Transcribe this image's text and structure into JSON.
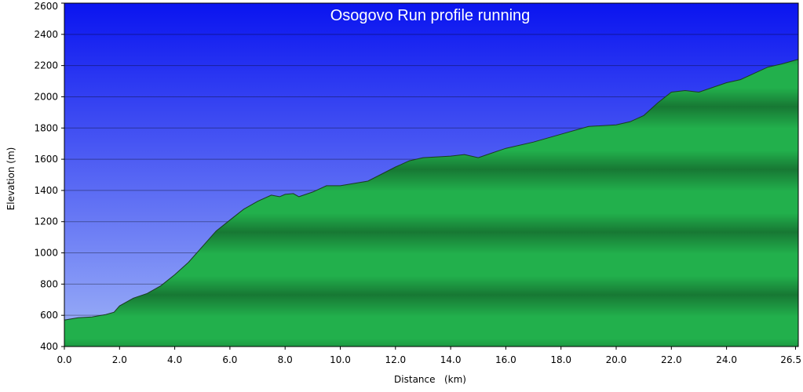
{
  "chart_data": {
    "type": "area",
    "title": "Osogovo Run profile running",
    "xlabel": "Distance   (km)",
    "ylabel": "Elevation (m)",
    "xlim": [
      0,
      26.6
    ],
    "ylim": [
      400,
      2600
    ],
    "x_ticks": [
      "0.0",
      "2.0",
      "4.0",
      "6.0",
      "8.0",
      "10.0",
      "12.0",
      "14.0",
      "16.0",
      "18.0",
      "20.0",
      "22.0",
      "24.0",
      "26.5"
    ],
    "x_tick_values": [
      0,
      2,
      4,
      6,
      8,
      10,
      12,
      14,
      16,
      18,
      20,
      22,
      24,
      26.5
    ],
    "y_ticks": [
      "400",
      "600",
      "800",
      "1000",
      "1200",
      "1400",
      "1600",
      "1800",
      "2000",
      "2200",
      "2400",
      "2600"
    ],
    "y_tick_values": [
      400,
      600,
      800,
      1000,
      1200,
      1400,
      1600,
      1800,
      2000,
      2200,
      2400,
      2600
    ],
    "grid": true,
    "colors": {
      "sky_top": "#0a14f0",
      "sky_bottom": "#9fb4f7",
      "fill_light": "#22b04c",
      "fill_dark": "#157a30",
      "grid": "#000000"
    },
    "series": [
      {
        "x": [
          0,
          0.5,
          1.0,
          1.5,
          1.8,
          2.0,
          2.5,
          3.0,
          3.5,
          4.0,
          4.5,
          5.0,
          5.5,
          6.0,
          6.5,
          7.0,
          7.5,
          7.8,
          8.0,
          8.3,
          8.5,
          9.0,
          9.5,
          10.0,
          11.0,
          12.0,
          12.5,
          13.0,
          14.0,
          14.5,
          15.0,
          15.5,
          16.0,
          17.0,
          18.0,
          19.0,
          20.0,
          20.5,
          21.0,
          21.5,
          22.0,
          22.5,
          23.0,
          23.5,
          24.0,
          24.5,
          25.0,
          25.5,
          26.0,
          26.6
        ],
        "values": [
          570,
          585,
          590,
          605,
          620,
          660,
          710,
          740,
          790,
          860,
          940,
          1040,
          1140,
          1210,
          1280,
          1330,
          1370,
          1360,
          1375,
          1380,
          1360,
          1390,
          1430,
          1430,
          1460,
          1550,
          1590,
          1610,
          1620,
          1630,
          1610,
          1640,
          1670,
          1710,
          1760,
          1810,
          1820,
          1840,
          1880,
          1960,
          2030,
          2040,
          2030,
          2060,
          2090,
          2110,
          2150,
          2190,
          2210,
          2240
        ]
      }
    ]
  }
}
